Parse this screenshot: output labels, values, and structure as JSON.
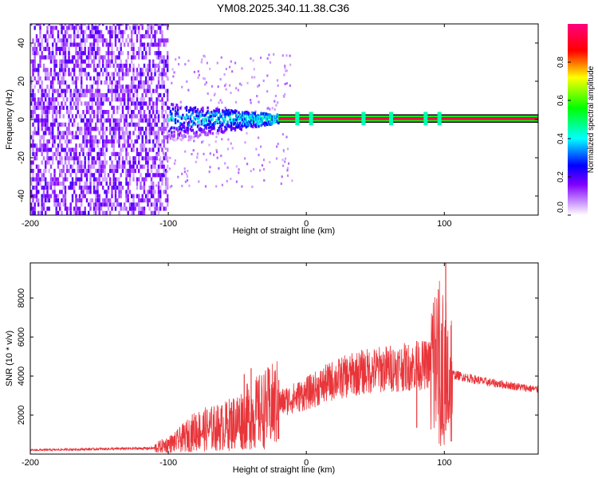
{
  "chart_data": [
    {
      "type": "heatmap",
      "title": "YM08.2025.340.11.38.C36",
      "xlabel": "Height of straight line (km)",
      "ylabel": "Frequency (Hz)",
      "xlim": [
        -200,
        168
      ],
      "ylim": [
        -50,
        50
      ],
      "xticks": [
        -200,
        -100,
        0,
        100
      ],
      "yticks": [
        -40,
        -20,
        0,
        20,
        40
      ],
      "colorbar": {
        "label": "Normalized spectral amplitude",
        "range": [
          0,
          1
        ],
        "ticks": [
          0.0,
          0.2,
          0.4,
          0.6,
          0.8
        ],
        "tick_labels": [
          "0.0",
          "0.2",
          "0.4",
          "0.6",
          "0.8"
        ],
        "stops": [
          "#ffffff",
          "#8000ff",
          "#0000ff",
          "#00ffff",
          "#00ff00",
          "#ffff00",
          "#ff0000",
          "#ff0080"
        ]
      },
      "regions": [
        {
          "name": "noise",
          "x_range": [
            -200,
            -100
          ],
          "f_range": [
            -50,
            50
          ],
          "amplitude": 0.15
        },
        {
          "name": "cone",
          "x_range": [
            -100,
            -20
          ],
          "f_spread_start": 10,
          "f_spread_end": 2,
          "amplitude": 0.35
        },
        {
          "name": "trace",
          "x_range": [
            -20,
            168
          ],
          "f_center": 0.5,
          "amplitude": 0.95
        }
      ]
    },
    {
      "type": "line",
      "xlabel": "Height of straight line (km)",
      "ylabel": "SNR (10 * v/v)",
      "xlim": [
        -200,
        168
      ],
      "ylim": [
        0,
        9800
      ],
      "xticks": [
        -200,
        -100,
        0,
        100
      ],
      "yticks": [
        2000,
        4000,
        6000,
        8000
      ],
      "color": "#e8353a",
      "envelope": [
        {
          "x": -200,
          "y": 200
        },
        {
          "x": -160,
          "y": 250
        },
        {
          "x": -110,
          "y": 300
        },
        {
          "x": -95,
          "y": 600
        },
        {
          "x": -80,
          "y": 1200
        },
        {
          "x": -60,
          "y": 1400
        },
        {
          "x": -40,
          "y": 2000
        },
        {
          "x": -20,
          "y": 2600
        },
        {
          "x": 0,
          "y": 3100
        },
        {
          "x": 20,
          "y": 3800
        },
        {
          "x": 40,
          "y": 4200
        },
        {
          "x": 60,
          "y": 4400
        },
        {
          "x": 80,
          "y": 4500
        },
        {
          "x": 95,
          "y": 4700
        },
        {
          "x": 100,
          "y": 4000
        },
        {
          "x": 105,
          "y": 4100
        },
        {
          "x": 130,
          "y": 3700
        },
        {
          "x": 168,
          "y": 3300
        }
      ],
      "spikes": [
        {
          "x": -80,
          "y": 2000
        },
        {
          "x": -45,
          "y": 4100
        },
        {
          "x": -40,
          "y": 4400
        },
        {
          "x": -20,
          "y": 3800
        },
        {
          "x": 80,
          "y": 5800
        },
        {
          "x": 98,
          "y": 6700
        },
        {
          "x": 101,
          "y": 9800
        }
      ]
    }
  ]
}
